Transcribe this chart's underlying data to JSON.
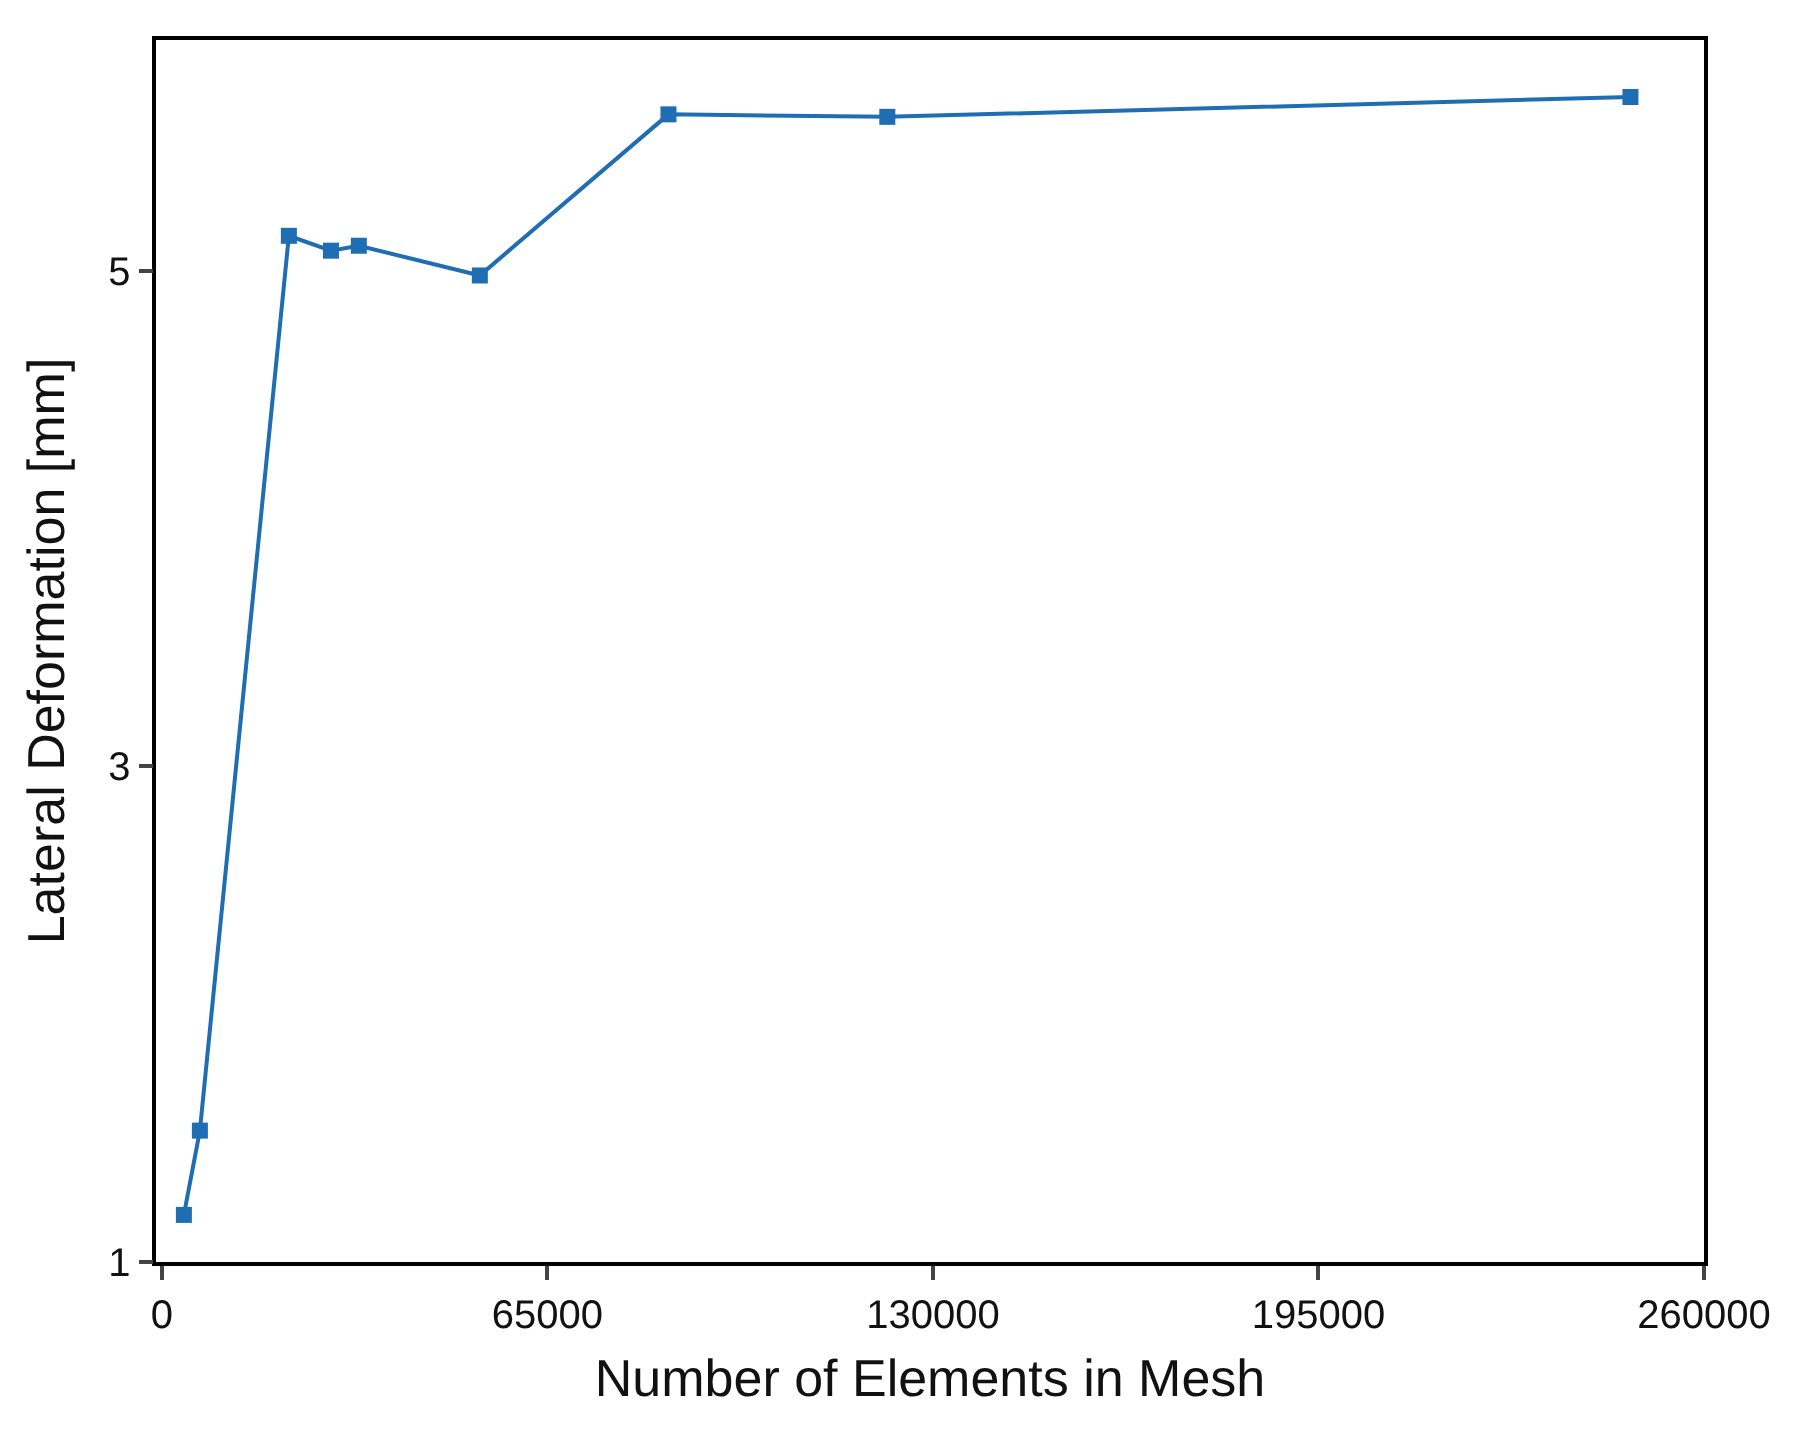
{
  "chart_data": {
    "type": "line",
    "xlabel": "Number of Elements in Mesh",
    "ylabel": "Lateral Deformation [mm]",
    "x": [
      3700,
      6400,
      21400,
      28500,
      33200,
      53600,
      85400,
      122300,
      247600
    ],
    "series": [
      {
        "color": "#1f6db2",
        "values": [
          1.19,
          1.53,
          5.14,
          5.08,
          5.1,
          4.98,
          5.63,
          5.62,
          5.7
        ]
      }
    ],
    "xlim": [
      -1000,
      260000
    ],
    "xticks": [
      0,
      65000,
      130000,
      195000,
      260000
    ],
    "ylim": [
      1,
      5.93
    ],
    "yticks": [
      1,
      3,
      5
    ],
    "grid": false,
    "legend": false,
    "marker": "square",
    "line_style": "solid"
  }
}
